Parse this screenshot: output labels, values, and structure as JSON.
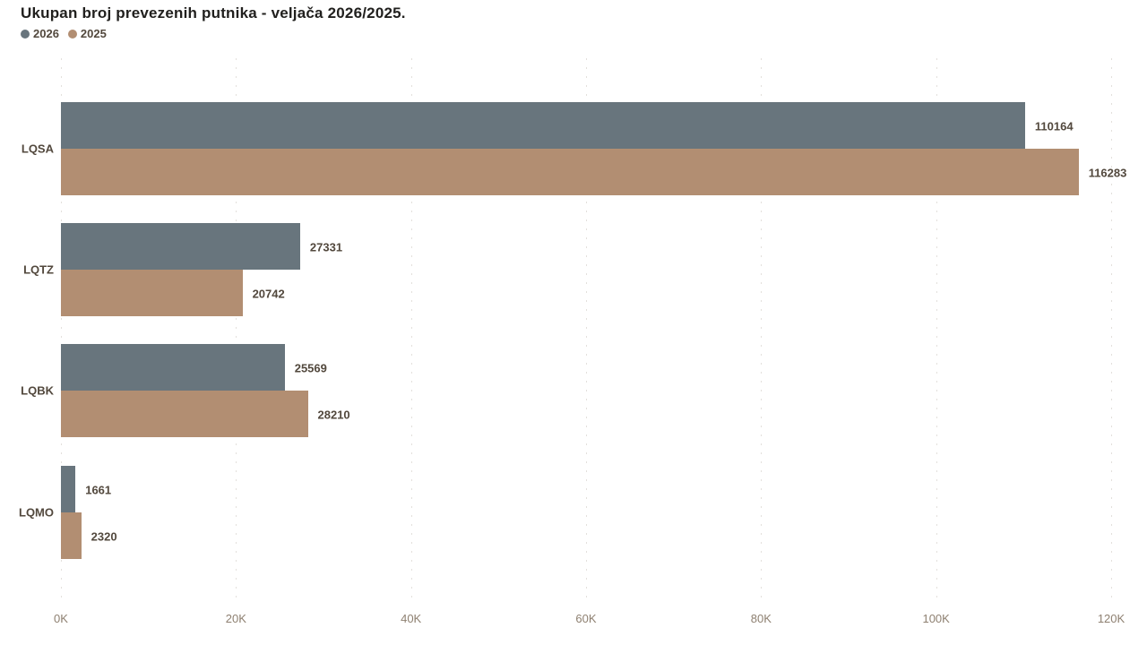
{
  "title": "Ukupan broj prevezenih putnika - veljača 2026/2025.",
  "legend": {
    "items": [
      {
        "label": "2026",
        "color": "#68757d"
      },
      {
        "label": "2025",
        "color": "#b28e72"
      }
    ]
  },
  "chart_data": {
    "type": "bar",
    "orientation": "horizontal",
    "title": "Ukupan broj prevezenih putnika - veljača 2026/2025.",
    "categories": [
      "LQSA",
      "LQTZ",
      "LQBK",
      "LQMO"
    ],
    "series": [
      {
        "name": "2026",
        "color": "#68757d",
        "values": [
          110164,
          27331,
          25569,
          1661
        ]
      },
      {
        "name": "2025",
        "color": "#b28e72",
        "values": [
          116283,
          20742,
          28210,
          2320
        ]
      }
    ],
    "value_labels": [
      "110164",
      "27331",
      "25569",
      "1661",
      "116283",
      "20742",
      "28210",
      "2320"
    ],
    "xlabel": "",
    "ylabel": "",
    "xlim": [
      0,
      120000
    ],
    "x_ticks": [
      "0K",
      "20K",
      "40K",
      "60K",
      "80K",
      "100K",
      "120K"
    ],
    "x_tick_values": [
      0,
      20000,
      40000,
      60000,
      80000,
      100000,
      120000
    ],
    "grid": "vertical-dotted",
    "legend_position": "top-left"
  },
  "colors": {
    "background": "#ffffff",
    "title_text": "#21201e",
    "data_label_text": "#52483d",
    "axis_tick_text": "#8e8071",
    "gridline": "#e3e0dc",
    "series_2026": "#68757d",
    "series_2025": "#b28e72"
  }
}
